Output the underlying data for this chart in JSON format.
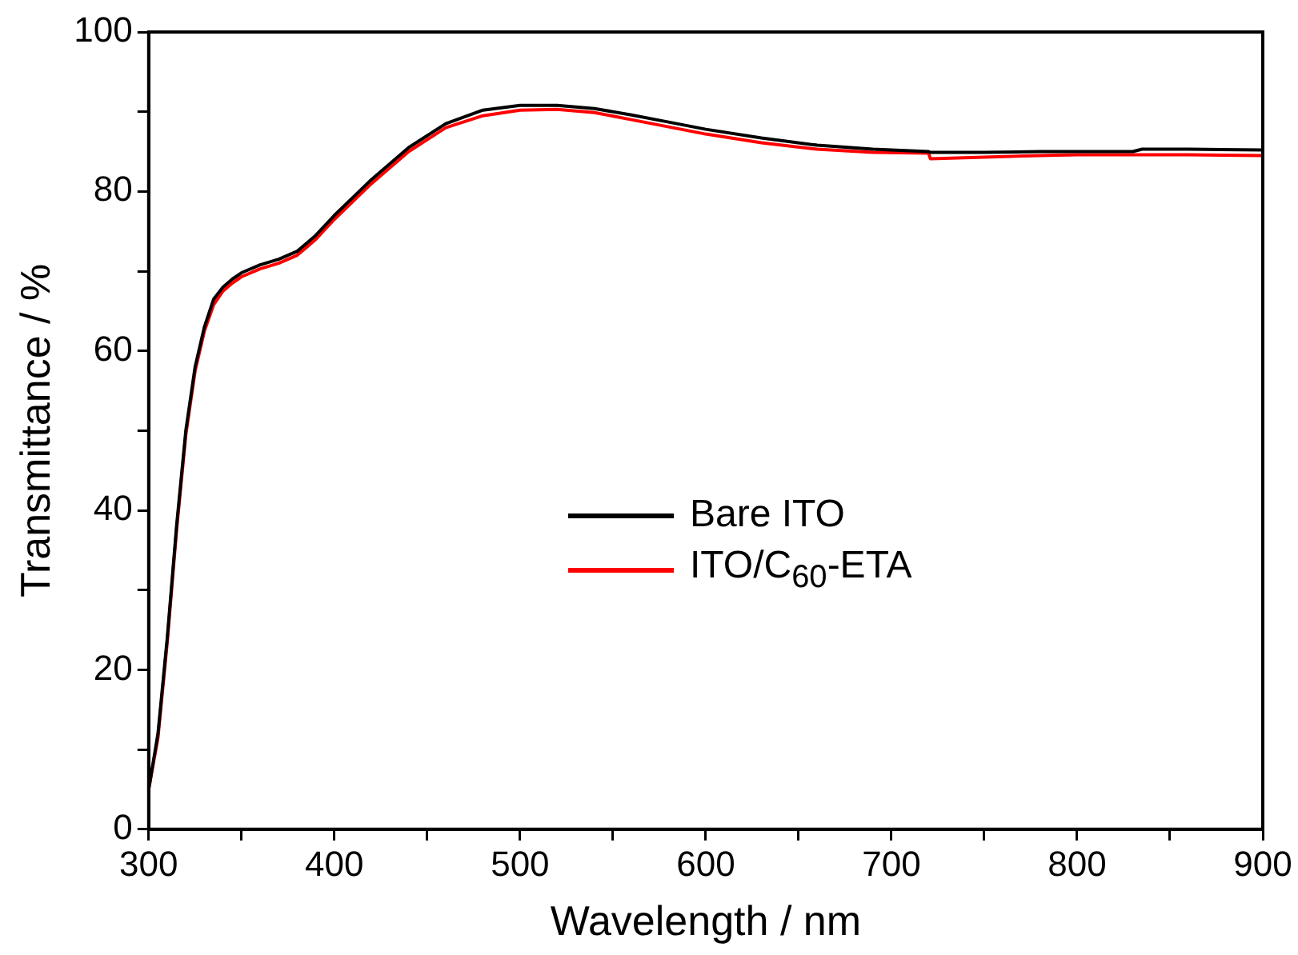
{
  "chart_data": {
    "type": "line",
    "xlabel": "Wavelength / nm",
    "ylabel": "Transmittance / %",
    "x": [
      300,
      305,
      310,
      315,
      320,
      325,
      330,
      335,
      340,
      345,
      350,
      360,
      370,
      380,
      385,
      390,
      400,
      420,
      440,
      460,
      480,
      500,
      520,
      540,
      560,
      580,
      600,
      630,
      660,
      690,
      720,
      721,
      750,
      780,
      800,
      830,
      835,
      860,
      900
    ],
    "series": [
      {
        "name": "Bare ITO",
        "color": "#000000",
        "values": [
          5,
          12,
          24,
          38,
          50,
          58,
          63,
          66.5,
          68,
          69,
          69.8,
          70.8,
          71.5,
          72.5,
          73.5,
          74.5,
          77,
          81.5,
          85.5,
          88.5,
          90.2,
          90.8,
          90.8,
          90.4,
          89.6,
          88.7,
          87.8,
          86.7,
          85.8,
          85.3,
          85,
          84.9,
          84.9,
          85,
          85,
          85,
          85.3,
          85.3,
          85.2
        ]
      },
      {
        "name": "ITO/C$_{60}$-ETA",
        "color": "#ff0000",
        "values": [
          5,
          11.5,
          23.5,
          37.5,
          49.5,
          57.5,
          62.5,
          65.8,
          67.5,
          68.5,
          69.3,
          70.3,
          71,
          72,
          73,
          74,
          76.5,
          81,
          85,
          88,
          89.5,
          90.2,
          90.3,
          89.9,
          89,
          88.1,
          87.2,
          86.1,
          85.3,
          84.9,
          84.8,
          84.1,
          84.3,
          84.5,
          84.6,
          84.6,
          84.6,
          84.6,
          84.5
        ]
      }
    ],
    "xlim": [
      300,
      900
    ],
    "ylim": [
      0,
      100
    ],
    "xticks": [
      300,
      {
        "value": 350,
        "label": null
      },
      400,
      {
        "value": 450,
        "label": null
      },
      500,
      {
        "value": 550,
        "label": null
      },
      600,
      {
        "value": 650,
        "label": null
      },
      700,
      {
        "value": 750,
        "label": null
      },
      800,
      {
        "value": 850,
        "label": null
      },
      900
    ],
    "yticks": [
      0,
      {
        "value": 10,
        "label": null
      },
      20,
      {
        "value": 30,
        "label": null
      },
      40,
      {
        "value": 50,
        "label": null
      },
      60,
      {
        "value": 70,
        "label": null
      },
      80,
      {
        "value": 90,
        "label": null
      },
      100
    ],
    "grid": false,
    "legend": "center",
    "marker": "none",
    "line_style": "solid"
  }
}
